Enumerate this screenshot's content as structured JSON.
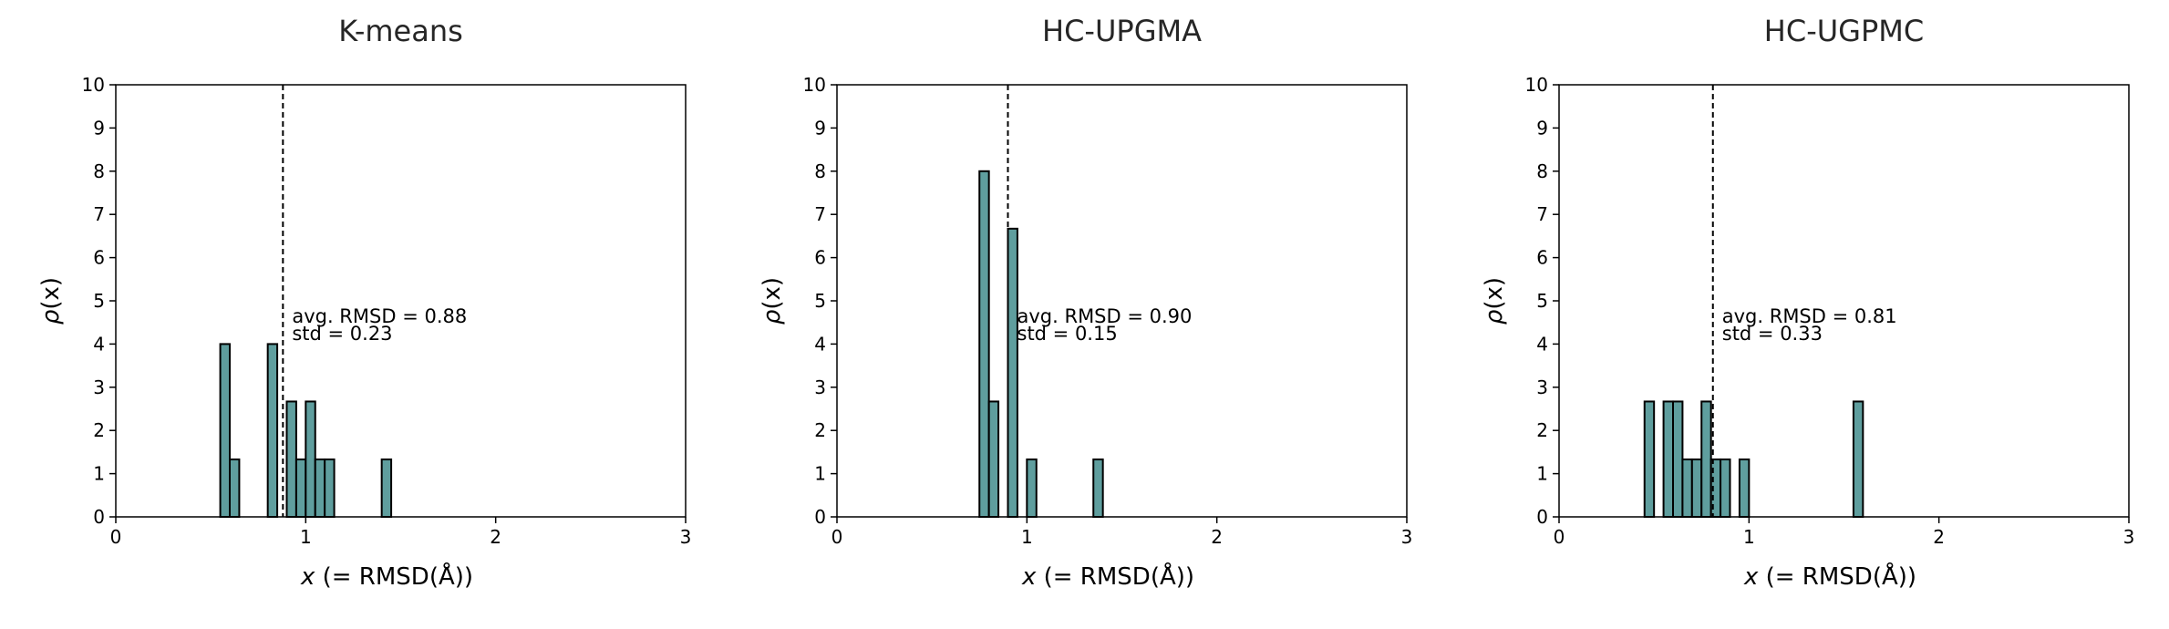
{
  "chart_data": [
    {
      "type": "bar",
      "title": "K-means",
      "xlabel_italic": "x",
      "xlabel_rest": " (= RMSD(Å))",
      "ylabel_italic": "ρ",
      "ylabel_rest": "(x)",
      "xlim": [
        0,
        3
      ],
      "ylim": [
        0,
        10
      ],
      "xticks": [
        "0",
        "1",
        "2",
        "3"
      ],
      "yticks": [
        "0",
        "1",
        "2",
        "3",
        "4",
        "5",
        "6",
        "7",
        "8",
        "9",
        "10"
      ],
      "bin_width": 0.05,
      "bars": [
        {
          "x": 0.55,
          "value": 4.0
        },
        {
          "x": 0.6,
          "value": 1.33
        },
        {
          "x": 0.8,
          "value": 4.0
        },
        {
          "x": 0.9,
          "value": 2.67
        },
        {
          "x": 0.95,
          "value": 1.33
        },
        {
          "x": 1.0,
          "value": 2.67
        },
        {
          "x": 1.05,
          "value": 1.33
        },
        {
          "x": 1.1,
          "value": 1.33
        },
        {
          "x": 1.4,
          "value": 1.33
        }
      ],
      "mean_line": 0.88,
      "annotation": [
        "avg. RMSD = 0.88",
        "std = 0.23"
      ],
      "bar_color": "#5f9e9e"
    },
    {
      "type": "bar",
      "title": "HC-UPGMA",
      "xlabel_italic": "x",
      "xlabel_rest": " (= RMSD(Å))",
      "ylabel_italic": "ρ",
      "ylabel_rest": "(x)",
      "xlim": [
        0,
        3
      ],
      "ylim": [
        0,
        10
      ],
      "xticks": [
        "0",
        "1",
        "2",
        "3"
      ],
      "yticks": [
        "0",
        "1",
        "2",
        "3",
        "4",
        "5",
        "6",
        "7",
        "8",
        "9",
        "10"
      ],
      "bin_width": 0.05,
      "bars": [
        {
          "x": 0.75,
          "value": 8.0
        },
        {
          "x": 0.8,
          "value": 2.67
        },
        {
          "x": 0.9,
          "value": 6.67
        },
        {
          "x": 1.0,
          "value": 1.33
        },
        {
          "x": 1.35,
          "value": 1.33
        }
      ],
      "mean_line": 0.9,
      "annotation": [
        "avg. RMSD = 0.90",
        "std = 0.15"
      ],
      "bar_color": "#5f9e9e"
    },
    {
      "type": "bar",
      "title": "HC-UGPMC",
      "xlabel_italic": "x",
      "xlabel_rest": " (= RMSD(Å))",
      "ylabel_italic": "ρ",
      "ylabel_rest": "(x)",
      "xlim": [
        0,
        3
      ],
      "ylim": [
        0,
        10
      ],
      "xticks": [
        "0",
        "1",
        "2",
        "3"
      ],
      "yticks": [
        "0",
        "1",
        "2",
        "3",
        "4",
        "5",
        "6",
        "7",
        "8",
        "9",
        "10"
      ],
      "bin_width": 0.05,
      "bars": [
        {
          "x": 0.45,
          "value": 2.67
        },
        {
          "x": 0.55,
          "value": 2.67
        },
        {
          "x": 0.6,
          "value": 2.67
        },
        {
          "x": 0.65,
          "value": 1.33
        },
        {
          "x": 0.7,
          "value": 1.33
        },
        {
          "x": 0.75,
          "value": 2.67
        },
        {
          "x": 0.8,
          "value": 1.33
        },
        {
          "x": 0.85,
          "value": 1.33
        },
        {
          "x": 0.95,
          "value": 1.33
        },
        {
          "x": 1.55,
          "value": 2.67
        }
      ],
      "mean_line": 0.81,
      "annotation": [
        "avg. RMSD = 0.81",
        "std = 0.33"
      ],
      "bar_color": "#5f9e9e"
    }
  ]
}
